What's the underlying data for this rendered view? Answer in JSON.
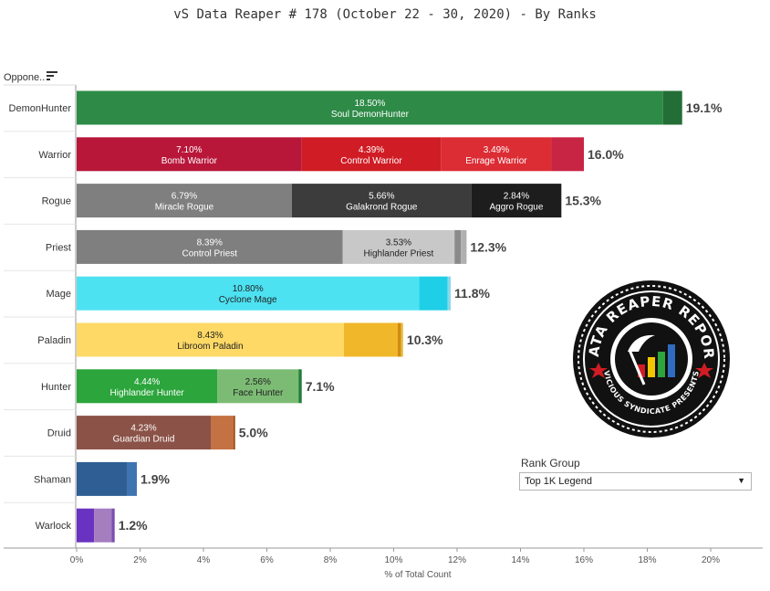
{
  "title": "vS Data Reaper #  178 (October 22 - 30, 2020) - By Ranks",
  "header": {
    "opponent_label": "Oppone.."
  },
  "rank_group": {
    "label": "Rank Group",
    "selected": "Top 1K Legend"
  },
  "logo": {
    "text_top": "DATA REAPER REPORT",
    "text_bottom": "VICIOUS SYNDICATE PRESENTS"
  },
  "chart_data": {
    "type": "bar",
    "orientation": "horizontal",
    "stacked": true,
    "title": "vS Data Reaper #  178 (October 22 - 30, 2020) - By Ranks",
    "xlabel": "% of Total Count",
    "ylabel": "",
    "xlim": [
      0,
      21
    ],
    "x_ticks": [
      "0%",
      "2%",
      "4%",
      "6%",
      "8%",
      "10%",
      "12%",
      "14%",
      "16%",
      "18%",
      "20%"
    ],
    "categories": [
      "DemonHunter",
      "Warrior",
      "Rogue",
      "Priest",
      "Mage",
      "Paladin",
      "Hunter",
      "Druid",
      "Shaman",
      "Warlock"
    ],
    "totals": [
      "19.1%",
      "16.0%",
      "15.3%",
      "12.3%",
      "11.8%",
      "10.3%",
      "7.1%",
      "5.0%",
      "1.9%",
      "1.2%"
    ],
    "bars": [
      {
        "class": "DemonHunter",
        "segments": [
          {
            "value": 18.5,
            "label": "18.50%",
            "name": "Soul DemonHunter",
            "color": "#2e8b47"
          },
          {
            "value": 0.6,
            "color": "#236e37"
          }
        ]
      },
      {
        "class": "Warrior",
        "segments": [
          {
            "value": 7.1,
            "label": "7.10%",
            "name": "Bomb Warrior",
            "color": "#b8173a"
          },
          {
            "value": 4.39,
            "label": "4.39%",
            "name": "Control Warrior",
            "color": "#d01c24"
          },
          {
            "value": 3.49,
            "label": "3.49%",
            "name": "Enrage Warrior",
            "color": "#dc2c34"
          },
          {
            "value": 1.02,
            "color": "#c82544"
          }
        ]
      },
      {
        "class": "Rogue",
        "segments": [
          {
            "value": 6.79,
            "label": "6.79%",
            "name": "Miracle Rogue",
            "color": "#7f7f7f"
          },
          {
            "value": 5.66,
            "label": "5.66%",
            "name": "Galakrond Rogue",
            "color": "#3c3c3c"
          },
          {
            "value": 2.84,
            "label": "2.84%",
            "name": "Aggro Rogue",
            "color": "#1d1d1d"
          }
        ]
      },
      {
        "class": "Priest",
        "segments": [
          {
            "value": 8.39,
            "label": "8.39%",
            "name": "Control Priest",
            "color": "#7f7f7f"
          },
          {
            "value": 3.53,
            "label": "3.53%",
            "name": "Highlander Priest",
            "color": "#c8c8c8"
          },
          {
            "value": 0.2,
            "color": "#8a8a8a"
          },
          {
            "value": 0.18,
            "color": "#b0b0b0"
          }
        ]
      },
      {
        "class": "Mage",
        "segments": [
          {
            "value": 10.8,
            "label": "10.80%",
            "name": "Cyclone Mage",
            "color": "#4de2f2"
          },
          {
            "value": 0.9,
            "color": "#1fcfe7"
          },
          {
            "value": 0.1,
            "color": "#8ad8ea"
          }
        ]
      },
      {
        "class": "Paladin",
        "segments": [
          {
            "value": 8.43,
            "label": "8.43%",
            "name": "Libroom Paladin",
            "color": "#fed966"
          },
          {
            "value": 1.7,
            "color": "#f0b72a"
          },
          {
            "value": 0.1,
            "color": "#d28a10"
          },
          {
            "value": 0.07,
            "color": "#e8c04a"
          }
        ]
      },
      {
        "class": "Hunter",
        "segments": [
          {
            "value": 4.44,
            "label": "4.44%",
            "name": "Highlander Hunter",
            "color": "#2ca53c"
          },
          {
            "value": 2.56,
            "label": "2.56%",
            "name": "Face Hunter",
            "color": "#7cbb74"
          },
          {
            "value": 0.1,
            "color": "#1f7f35"
          }
        ]
      },
      {
        "class": "Druid",
        "segments": [
          {
            "value": 4.23,
            "label": "4.23%",
            "name": "Guardian Druid",
            "color": "#8b5247"
          },
          {
            "value": 0.72,
            "color": "#c47243"
          },
          {
            "value": 0.05,
            "color": "#a04a1e"
          }
        ]
      },
      {
        "class": "Shaman",
        "segments": [
          {
            "value": 1.6,
            "color": "#2f5e95"
          },
          {
            "value": 0.3,
            "color": "#3f74b3"
          }
        ]
      },
      {
        "class": "Warlock",
        "segments": [
          {
            "value": 0.55,
            "color": "#6a32c0"
          },
          {
            "value": 0.55,
            "color": "#a57ec0"
          },
          {
            "value": 0.1,
            "color": "#7b4eb0"
          }
        ]
      }
    ]
  }
}
